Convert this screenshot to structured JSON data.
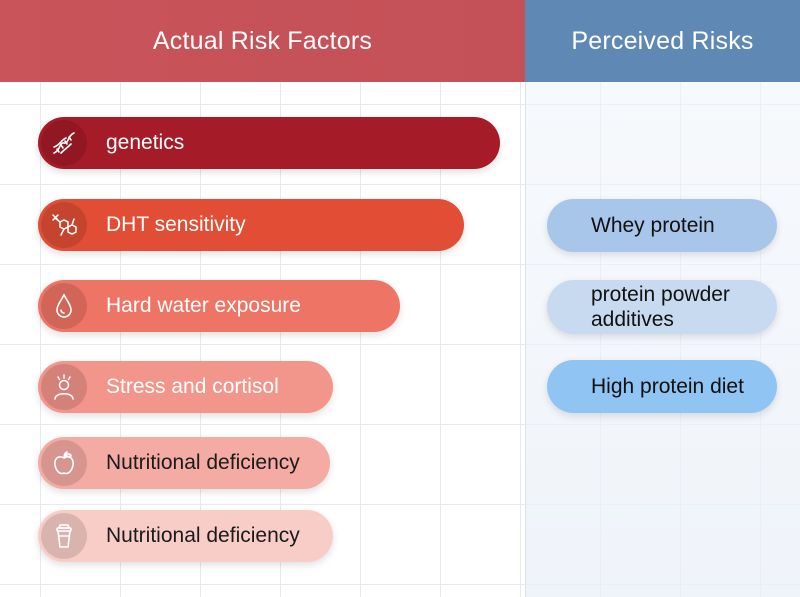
{
  "headers": {
    "actual": "Actual Risk Factors",
    "perceived": "Perceived Risks"
  },
  "actual_factors": [
    {
      "label": "genetics",
      "icon": "dna-icon",
      "color": "#a51c28"
    },
    {
      "label": "DHT sensitivity",
      "icon": "molecule-icon",
      "color": "#e14e35"
    },
    {
      "label": "Hard water exposure",
      "icon": "water-drop-icon",
      "color": "#ee7565"
    },
    {
      "label": "Stress and cortisol",
      "icon": "stressed-person-icon",
      "color": "#f2958a"
    },
    {
      "label": "Nutritional deficiency",
      "icon": "apple-icon",
      "color": "#f4aba3"
    },
    {
      "label": "Nutritional deficiency",
      "icon": "shaker-cup-icon",
      "color": "#f8cdc8"
    }
  ],
  "perceived_risks": [
    {
      "label": "Whey protein",
      "color": "#a8c6ea"
    },
    {
      "label": "protein powder additives",
      "color": "#c7daf0"
    },
    {
      "label": "High protein diet",
      "color": "#8fc4f3"
    }
  ],
  "colors": {
    "actual_header": "#c9545a",
    "perceived_header": "#5f88b5"
  }
}
